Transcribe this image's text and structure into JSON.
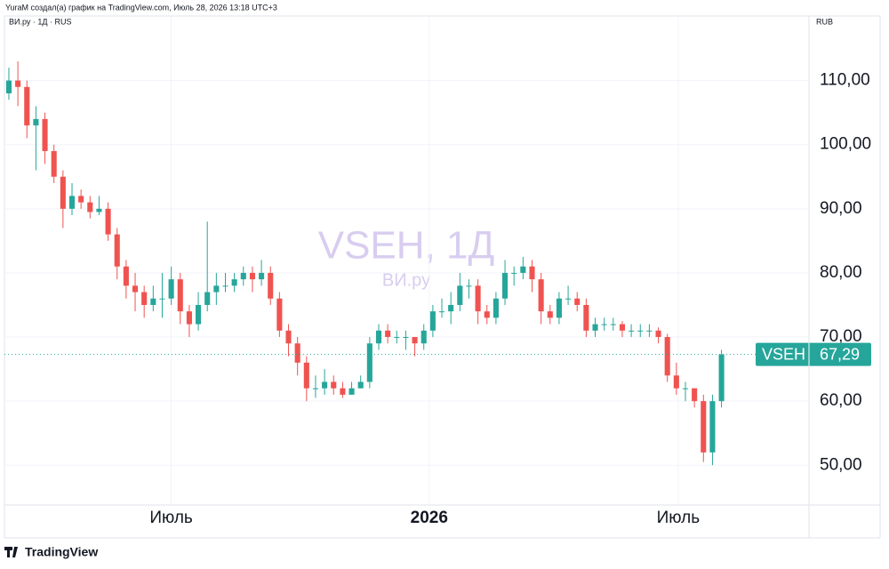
{
  "header": {
    "text": "YuraM создал(а) график на TradingView.com, Июль 28, 2026 13:18 UTC+3",
    "footer": "TradingView"
  },
  "chart_data": {
    "type": "candlestick",
    "title": "VSEH, 1Д",
    "subtitle": "ВИ.ру",
    "symbol_info": "ВИ.ру · 1Д · RUS",
    "currency": "RUB",
    "up_color": "#26a69a",
    "down_color": "#ef5350",
    "last_price": {
      "name": "VSEH",
      "value": 67.29,
      "label": "67,29",
      "color": "#26a69a"
    },
    "xlim": [
      -0.49,
      88.7
    ],
    "xticks": [
      {
        "value": 18,
        "label": "Июль"
      },
      {
        "value": 46.6,
        "label": "2026"
      },
      {
        "value": 74.2,
        "label": "Июль"
      }
    ],
    "ylim": [
      43.8,
      118.4
    ],
    "yticks": [
      {
        "value": 50,
        "label": "50,00"
      },
      {
        "value": 60,
        "label": "60,00"
      },
      {
        "value": 70,
        "label": "70,00"
      },
      {
        "value": 80,
        "label": "80,00"
      },
      {
        "value": 90,
        "label": "90,00"
      },
      {
        "value": 100,
        "label": "100,00"
      },
      {
        "value": 110,
        "label": "110,00"
      }
    ],
    "grid": true,
    "open": [
      108,
      110,
      109,
      103,
      104,
      99,
      95,
      90,
      92,
      91,
      89.5,
      90,
      86,
      81,
      78,
      77,
      75,
      76,
      76,
      79,
      74,
      72,
      75,
      77,
      78,
      78,
      79,
      80,
      79,
      80,
      76,
      71,
      69,
      66,
      62,
      62,
      63,
      62,
      61,
      62,
      63,
      69,
      71,
      70,
      70,
      70,
      69,
      71,
      74,
      74,
      75,
      78,
      78,
      74,
      73,
      76,
      80,
      80,
      81,
      79,
      74,
      73,
      76,
      76,
      75,
      71,
      72,
      72,
      72,
      71,
      71,
      71,
      71,
      70,
      64,
      62,
      62,
      60,
      52,
      60
    ],
    "high": [
      112,
      113,
      110,
      106,
      105,
      100,
      96,
      94,
      93,
      92,
      92,
      91,
      87,
      82,
      80,
      78,
      78,
      80,
      81,
      80,
      75,
      77,
      88,
      80,
      80,
      80,
      81,
      81,
      82,
      81,
      77,
      72,
      70,
      67,
      64,
      65,
      64,
      63,
      63,
      64,
      70,
      72,
      72,
      71,
      71,
      70,
      72,
      75,
      76,
      77,
      80,
      79,
      79,
      75,
      77,
      82,
      81,
      82.5,
      82,
      80,
      75,
      77,
      78,
      77,
      76,
      73,
      73,
      73,
      72.5,
      72,
      72,
      72,
      71.5,
      70.5,
      66,
      63,
      62,
      61,
      61,
      68
    ],
    "low": [
      107,
      106,
      101,
      96,
      97,
      94,
      87,
      89,
      90,
      88.5,
      89,
      85,
      79,
      76,
      74,
      73,
      74,
      73,
      75,
      72,
      70,
      71,
      74,
      75,
      77,
      77,
      78,
      77,
      78,
      75,
      70,
      67,
      64,
      60,
      60.5,
      61,
      61,
      60.5,
      61,
      62,
      62,
      68,
      69,
      69,
      68,
      67,
      68,
      70,
      73,
      72,
      74,
      76,
      72,
      72,
      72,
      75,
      78,
      79,
      77,
      72,
      72,
      72,
      75,
      74,
      70,
      70,
      71,
      71,
      70,
      70,
      70,
      70,
      69,
      63,
      61,
      60,
      59,
      50.5,
      50,
      59
    ],
    "close": [
      110,
      109,
      103,
      104,
      99,
      95,
      90,
      92,
      91,
      89.5,
      90,
      86,
      81,
      78,
      77,
      75,
      76,
      76,
      79,
      74,
      72,
      75,
      77,
      78,
      78,
      79,
      80,
      79,
      80,
      76,
      71,
      69,
      66,
      62,
      62,
      63,
      62,
      61,
      62,
      63,
      69,
      71,
      70,
      70,
      70,
      69,
      71,
      74,
      74,
      75,
      78,
      78,
      74,
      73,
      76,
      80,
      80,
      81,
      79,
      74,
      73,
      76,
      76,
      75,
      71,
      72,
      72,
      72,
      71,
      71,
      71,
      71,
      70,
      64,
      62,
      62,
      60,
      52,
      60,
      67.29
    ]
  }
}
